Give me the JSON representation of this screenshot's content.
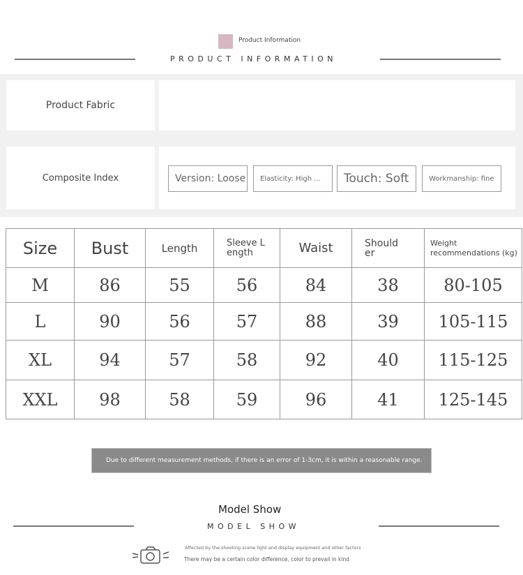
{
  "header": {
    "small_title": "Product Information",
    "title": "PRODUCT INFORMATION",
    "swatch_color": "#d6b6c1"
  },
  "info": {
    "fabric_label": "Product Fabric",
    "fabric_value": "",
    "index_label": "Composite Index",
    "tags": [
      "Version: Loose",
      "Elasticity: High ...",
      "Touch: Soft",
      "Workmanship: fine"
    ]
  },
  "size_table": {
    "headers": [
      "Size",
      "Bust",
      "Length",
      "Sleeve L ength",
      "Waist",
      "Shoulder",
      "Weight recommendations (kg)"
    ],
    "rows": [
      [
        "M",
        "86",
        "55",
        "56",
        "84",
        "38",
        "80-105"
      ],
      [
        "L",
        "90",
        "56",
        "57",
        "88",
        "39",
        "105-115"
      ],
      [
        "XL",
        "94",
        "57",
        "58",
        "92",
        "40",
        "115-125"
      ],
      [
        "XXL",
        "98",
        "58",
        "59",
        "96",
        "41",
        "125-145"
      ]
    ]
  },
  "note": "Due to different measurement methods, if there is an error of 1-3cm, it is within a reasonable range.",
  "model": {
    "title": "Model Show",
    "subtitle": "MODEL SHOW",
    "line1": "Affected by the shooting scene light and display equipment and other factors",
    "line2": "There may be a certain color difference, color to prevail in kind"
  }
}
